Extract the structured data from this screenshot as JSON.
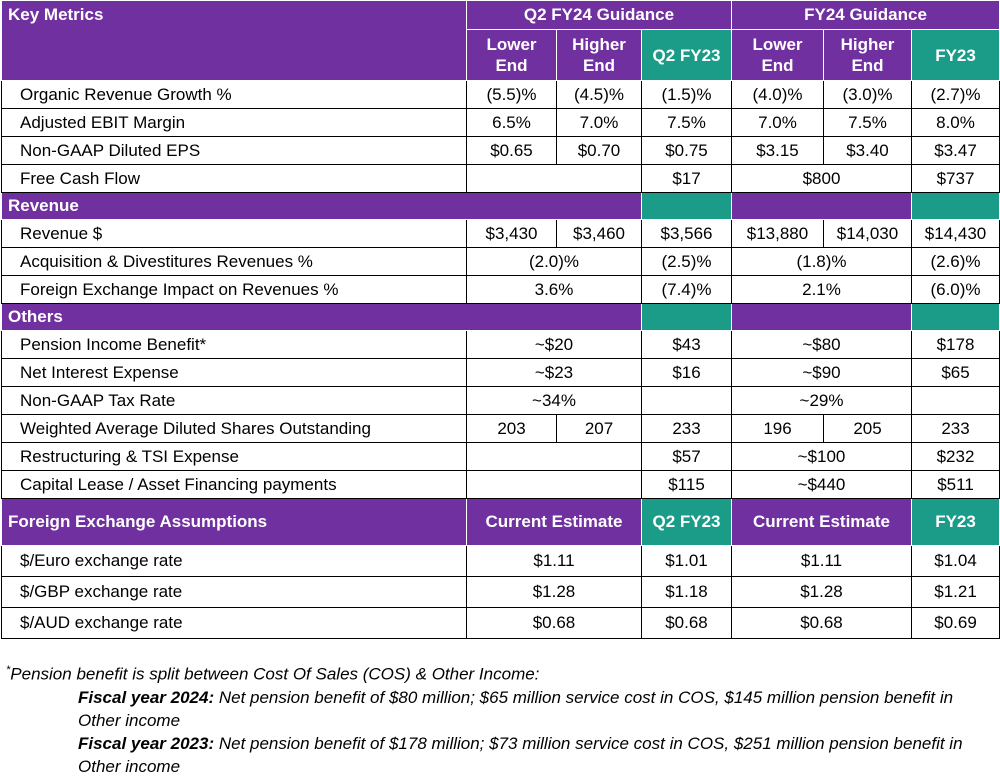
{
  "header": {
    "key_metrics": "Key Metrics",
    "q2_guidance": "Q2 FY24 Guidance",
    "fy24_guidance": "FY24 Guidance",
    "lower_end": "Lower End",
    "higher_end": "Higher End",
    "q2_fy23": "Q2 FY23",
    "fy23": "FY23"
  },
  "key_metrics_rows": [
    [
      "Organic Revenue Growth %",
      "(5.5)%",
      "(4.5)%",
      "(1.5)%",
      "(4.0)%",
      "(3.0)%",
      "(2.7)%"
    ],
    [
      "Adjusted EBIT Margin",
      "6.5%",
      "7.0%",
      "7.5%",
      "7.0%",
      "7.5%",
      "8.0%"
    ],
    [
      "Non-GAAP Diluted EPS",
      "$0.65",
      "$0.70",
      "$0.75",
      "$3.15",
      "$3.40",
      "$3.47"
    ],
    [
      "Free Cash Flow",
      "$17",
      "$800",
      "$737"
    ]
  ],
  "revenue": {
    "title": "Revenue",
    "rows": [
      [
        "Revenue $",
        "$3,430",
        "$3,460",
        "$3,566",
        "$13,880",
        "$14,030",
        "$14,430"
      ],
      [
        "Acquisition & Divestitures Revenues %",
        "(2.0)%",
        "(2.5)%",
        "(1.8)%",
        "(2.6)%"
      ],
      [
        "Foreign Exchange Impact on Revenues %",
        "3.6%",
        "(7.4)%",
        "2.1%",
        "(6.0)%"
      ]
    ]
  },
  "others": {
    "title": "Others",
    "rows": [
      [
        "Pension Income Benefit*",
        "~$20",
        "$43",
        "~$80",
        "$178"
      ],
      [
        "Net Interest Expense",
        "~$23",
        "$16",
        "~$90",
        "$65"
      ],
      [
        "Non-GAAP Tax Rate",
        "~34%",
        "~29%"
      ],
      [
        "Weighted Average Diluted Shares Outstanding",
        "203",
        "207",
        "233",
        "196",
        "205",
        "233"
      ],
      [
        "Restructuring & TSI Expense",
        "$57",
        "~$100",
        "$232"
      ],
      [
        "Capital Lease / Asset Financing payments",
        "$115",
        "~$440",
        "$511"
      ]
    ]
  },
  "fx": {
    "title": "Foreign Exchange Assumptions",
    "current_estimate": "Current Estimate",
    "q2_fy23": "Q2 FY23",
    "fy23": "FY23",
    "rows": [
      [
        "$/Euro exchange rate",
        "$1.11",
        "$1.01",
        "$1.11",
        "$1.04"
      ],
      [
        "$/GBP exchange rate",
        "$1.28",
        "$1.18",
        "$1.28",
        "$1.21"
      ],
      [
        "$/AUD exchange rate",
        "$0.68",
        "$0.68",
        "$0.68",
        "$0.69"
      ]
    ]
  },
  "footnote": {
    "marker": "*",
    "intro": "Pension benefit is split between Cost Of Sales (COS) & Other Income:",
    "items": [
      {
        "label": "Fiscal year 2024:",
        "text": "Net pension benefit of $80 million; $65 million service cost in COS, $145 million pension benefit in Other income"
      },
      {
        "label": "Fiscal year 2023:",
        "text": "Net pension benefit of $178 million; $73 million service cost in COS, $251 million pension benefit in Other income"
      }
    ]
  }
}
